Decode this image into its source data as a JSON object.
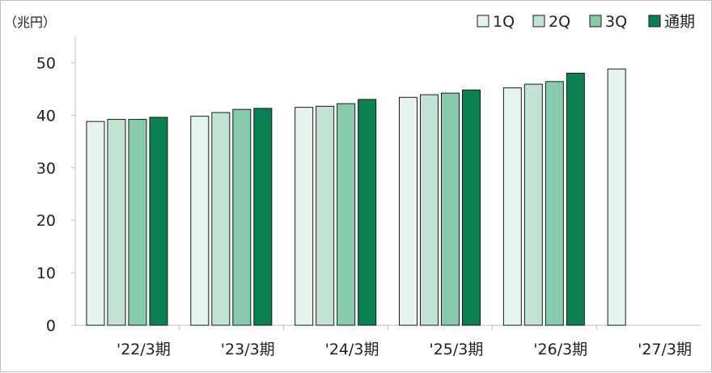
{
  "chart_data": {
    "type": "bar",
    "unit_label": "（兆円）",
    "categories": [
      "'22/3期",
      "'23/3期",
      "'24/3期",
      "'25/3期",
      "'26/3期",
      "'27/3期"
    ],
    "series": [
      {
        "name": "1Q",
        "color": "#e6f2ec",
        "values": [
          38.8,
          39.8,
          41.5,
          43.4,
          45.2,
          48.8
        ]
      },
      {
        "name": "2Q",
        "color": "#c2e3d1",
        "values": [
          39.2,
          40.5,
          41.7,
          43.9,
          45.9,
          null
        ]
      },
      {
        "name": "3Q",
        "color": "#86ccaa",
        "values": [
          39.2,
          41.1,
          42.2,
          44.2,
          46.4,
          null
        ]
      },
      {
        "name": "通期",
        "color": "#0a8050",
        "values": [
          39.6,
          41.3,
          43.0,
          44.8,
          48.0,
          null
        ]
      }
    ],
    "y_ticks": [
      "0",
      "10",
      "20",
      "30",
      "40",
      "50"
    ],
    "ylim": [
      0,
      55
    ],
    "legend_position": "top-right",
    "grid": false,
    "bar_outline_color": "#1a1a1a",
    "axis_color": "#bfbfbf"
  }
}
